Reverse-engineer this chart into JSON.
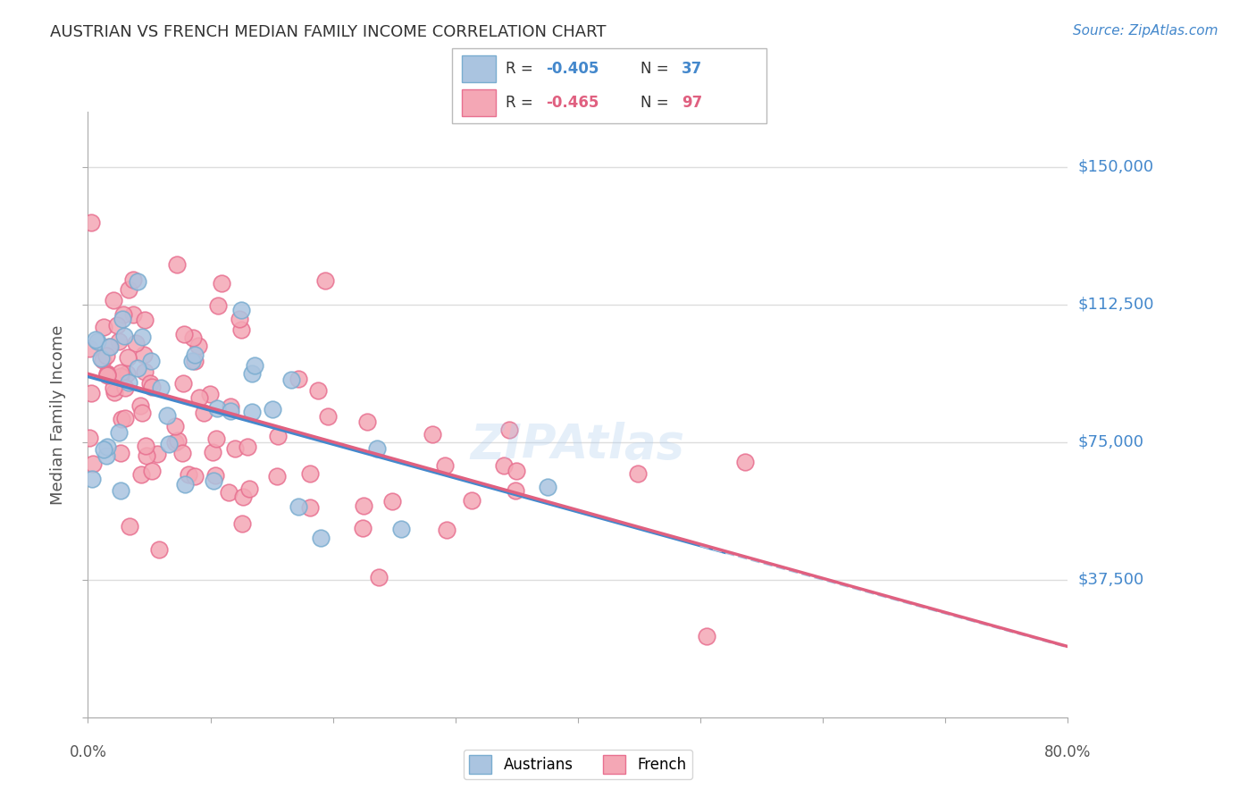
{
  "title": "AUSTRIAN VS FRENCH MEDIAN FAMILY INCOME CORRELATION CHART",
  "source": "Source: ZipAtlas.com",
  "ylabel": "Median Family Income",
  "yticks": [
    0,
    37500,
    75000,
    112500,
    150000
  ],
  "ytick_labels": [
    "",
    "$37,500",
    "$75,000",
    "$112,500",
    "$150,000"
  ],
  "xmin": 0.0,
  "xmax": 0.8,
  "ymin": 0,
  "ymax": 165000,
  "austrians_color": "#aac4e0",
  "austrians_edge": "#7aadd0",
  "french_color": "#f4a7b5",
  "french_edge": "#e87090",
  "blue_line_color": "#4488cc",
  "pink_line_color": "#e06080",
  "dashed_line_color": "#aac4e0",
  "background_color": "#ffffff",
  "grid_color": "#dddddd",
  "title_color": "#333333",
  "source_color": "#4488cc",
  "axis_label_color": "#555555",
  "ytick_color": "#4488cc",
  "xtick_color": "#555555",
  "legend_aus_r": "-0.405",
  "legend_aus_n": "37",
  "legend_fr_r": "-0.465",
  "legend_fr_n": "97",
  "watermark": "ZIPAtlas"
}
